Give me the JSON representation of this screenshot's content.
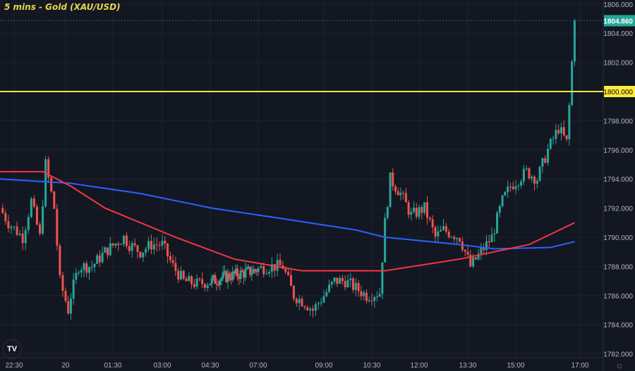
{
  "title": "5 mins - Gold (XAU/USD)",
  "logo": "TV",
  "settings_icon": "gear-icon",
  "colors": {
    "background": "#131722",
    "up": "#26a69a",
    "down": "#ef5350",
    "level": "#ffeb3b",
    "ma_red": "#f23645",
    "ma_blue": "#2962ff",
    "current": "#26a69a"
  },
  "chart_data": {
    "type": "candlestick",
    "interval": "5 mins",
    "symbol": "Gold (XAU/USD)",
    "ylim": [
      1782,
      1806
    ],
    "y_ticks": [
      "1806.000",
      "1804.000",
      "1802.000",
      "1800.000",
      "1798.000",
      "1796.000",
      "1794.000",
      "1792.000",
      "1790.000",
      "1788.000",
      "1786.000",
      "1784.000",
      "1782.000"
    ],
    "x_ticks": [
      "22:30",
      "20",
      "01:30",
      "03:00",
      "04:30",
      "07:00",
      "09:00",
      "10:30",
      "12:00",
      "13:30",
      "15:00",
      "17:00"
    ],
    "current_price": "1804.860",
    "horizontal_level": {
      "value": 1800,
      "label": "1800.000"
    },
    "price_path": [
      [
        "22:05",
        1792
      ],
      [
        "22:20",
        1791
      ],
      [
        "22:45",
        1790
      ],
      [
        "23:00",
        1792.5
      ],
      [
        "23:15",
        1790
      ],
      [
        "23:25",
        1795
      ],
      [
        "23:40",
        1792
      ],
      [
        "23:50",
        1787
      ],
      [
        "00:05",
        1785
      ],
      [
        "00:10",
        1786
      ],
      [
        "00:25",
        1788
      ],
      [
        "00:50",
        1788
      ],
      [
        "01:15",
        1789
      ],
      [
        "01:50",
        1790
      ],
      [
        "02:00",
        1789.5
      ],
      [
        "02:20",
        1789
      ],
      [
        "02:40",
        1789.5
      ],
      [
        "03:00",
        1789.5
      ],
      [
        "03:20",
        1788
      ],
      [
        "03:40",
        1787
      ],
      [
        "04:05",
        1786.8
      ],
      [
        "04:35",
        1787
      ],
      [
        "05:20",
        1787.3
      ],
      [
        "06:05",
        1787.5
      ],
      [
        "06:45",
        1787.7
      ],
      [
        "07:20",
        1788
      ],
      [
        "07:45",
        1788
      ],
      [
        "08:05",
        1786
      ],
      [
        "08:25",
        1785.5
      ],
      [
        "08:40",
        1785
      ],
      [
        "09:00",
        1786
      ],
      [
        "09:20",
        1787
      ],
      [
        "09:40",
        1787
      ],
      [
        "10:00",
        1786.5
      ],
      [
        "10:20",
        1786
      ],
      [
        "10:45",
        1786.2
      ],
      [
        "10:55",
        1791
      ],
      [
        "11:05",
        1794
      ],
      [
        "11:25",
        1793
      ],
      [
        "11:45",
        1791.5
      ],
      [
        "12:10",
        1792
      ],
      [
        "12:30",
        1790
      ],
      [
        "12:45",
        1790.5
      ],
      [
        "13:15",
        1790
      ],
      [
        "13:35",
        1788
      ],
      [
        "13:55",
        1789
      ],
      [
        "14:15",
        1790
      ],
      [
        "14:35",
        1792.5
      ],
      [
        "14:50",
        1793.5
      ],
      [
        "15:20",
        1794.5
      ],
      [
        "15:40",
        1794
      ],
      [
        "16:00",
        1796
      ],
      [
        "16:20",
        1797.5
      ],
      [
        "16:35",
        1796.5
      ],
      [
        "16:40",
        1799
      ],
      [
        "16:45",
        1802
      ],
      [
        "16:50",
        1804.86
      ]
    ],
    "ma_red": [
      [
        "22:05",
        1794.5
      ],
      [
        "23:20",
        1794.5
      ],
      [
        "00:10",
        1793.5
      ],
      [
        "01:15",
        1792
      ],
      [
        "03:25",
        1790
      ],
      [
        "05:45",
        1788.5
      ],
      [
        "08:20",
        1787.7
      ],
      [
        "10:55",
        1787.7
      ],
      [
        "13:15",
        1788.5
      ],
      [
        "15:25",
        1789.5
      ],
      [
        "16:50",
        1791
      ]
    ],
    "ma_blue": [
      [
        "22:05",
        1794
      ],
      [
        "00:10",
        1793.7
      ],
      [
        "02:20",
        1793
      ],
      [
        "04:35",
        1792
      ],
      [
        "07:40",
        1791.3
      ],
      [
        "10:00",
        1790.5
      ],
      [
        "10:55",
        1790
      ],
      [
        "13:15",
        1789.5
      ],
      [
        "14:20",
        1789.2
      ],
      [
        "16:05",
        1789.3
      ],
      [
        "16:50",
        1789.7
      ]
    ]
  }
}
